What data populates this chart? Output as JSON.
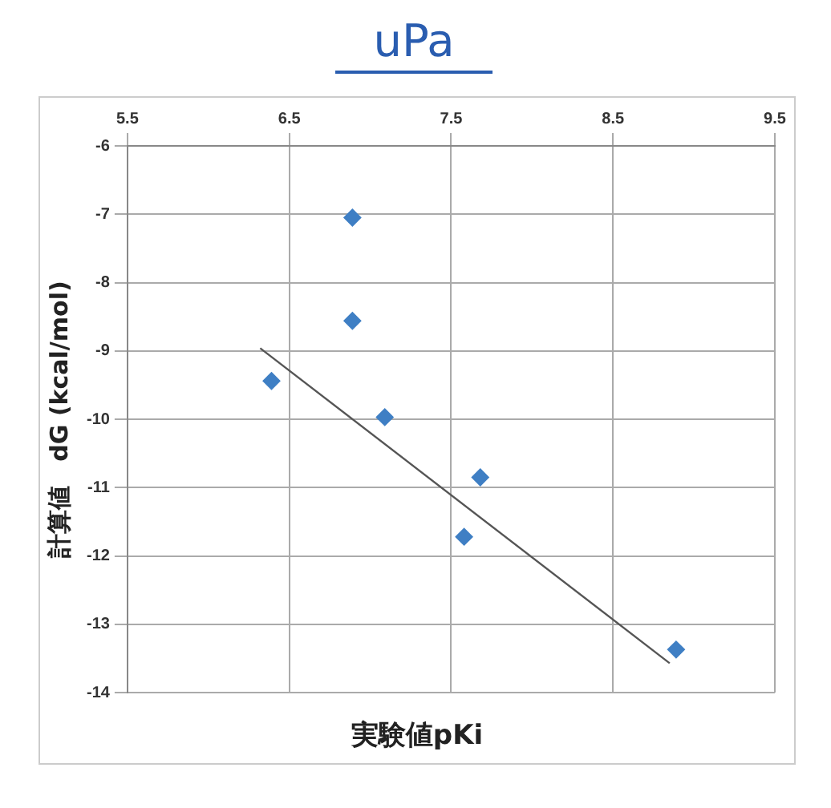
{
  "chart_data": {
    "type": "scatter",
    "title": "uPa",
    "xlabel": "実験値pKi",
    "ylabel": "計算値　dG (kcal/mol)",
    "xlim": [
      5.5,
      9.5
    ],
    "xticks": [
      5.5,
      6.5,
      7.5,
      8.5,
      9.5
    ],
    "ylim": [
      -14,
      -6
    ],
    "yticks": [
      -14,
      -13,
      -12,
      -11,
      -10,
      -9,
      -8,
      -7,
      -6
    ],
    "grid": true,
    "legend": false,
    "marker": "diamond",
    "series": [
      {
        "color": "#3f7fc4",
        "x": [
          6.39,
          6.89,
          6.89,
          7.09,
          7.68,
          7.58,
          8.89
        ],
        "values": [
          -9.44,
          -7.05,
          -8.56,
          -9.97,
          -10.85,
          -11.72,
          -13.37
        ]
      },
      {
        "type": "line",
        "color": "#555555",
        "marker": "none",
        "x": [
          6.32,
          8.85
        ],
        "values": [
          -8.96,
          -13.57
        ]
      }
    ]
  }
}
